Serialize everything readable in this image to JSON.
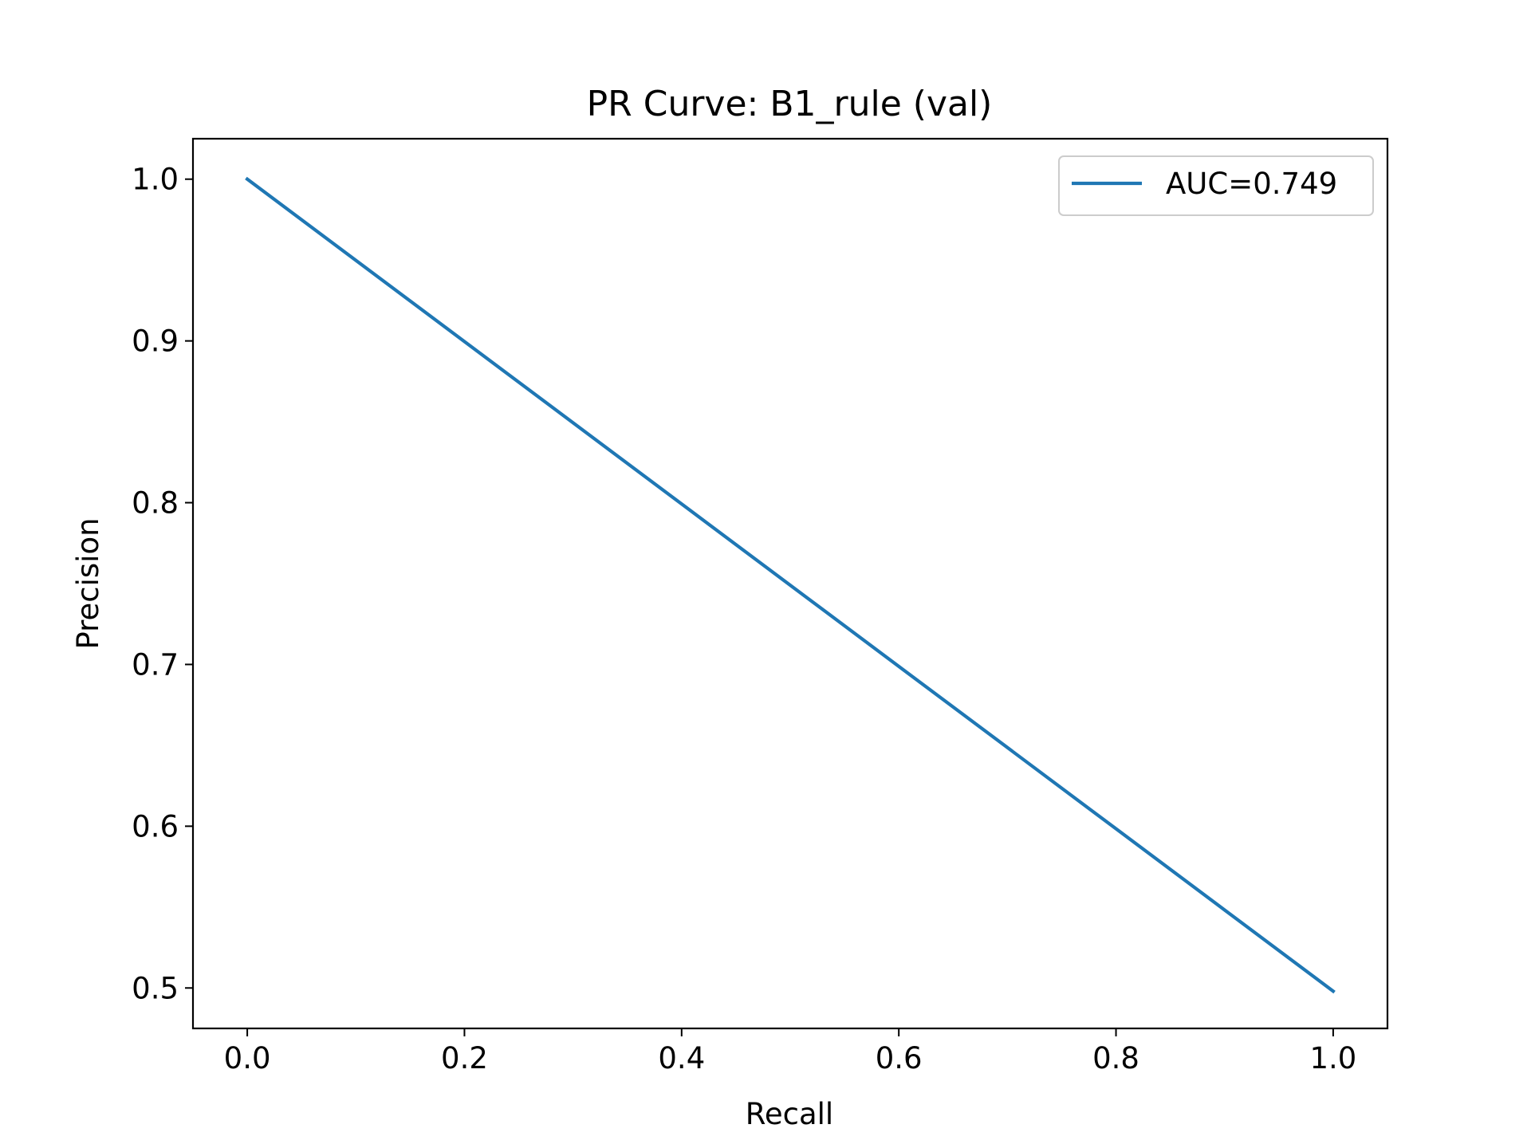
{
  "chart_data": {
    "type": "line",
    "title": "PR Curve: B1_rule (val)",
    "xlabel": "Recall",
    "ylabel": "Precision",
    "xlim": [
      -0.05,
      1.05
    ],
    "ylim": [
      0.475,
      1.025
    ],
    "xticks": [
      0.0,
      0.2,
      0.4,
      0.6,
      0.8,
      1.0
    ],
    "yticks": [
      0.5,
      0.6,
      0.7,
      0.8,
      0.9,
      1.0
    ],
    "xtick_labels": [
      "0.0",
      "0.2",
      "0.4",
      "0.6",
      "0.8",
      "1.0"
    ],
    "ytick_labels": [
      "0.5",
      "0.6",
      "0.7",
      "0.8",
      "0.9",
      "1.0"
    ],
    "grid": false,
    "legend_position": "upper right",
    "series": [
      {
        "name": "AUC=0.749",
        "color": "#1f77b4",
        "x": [
          0.0,
          1.0
        ],
        "y": [
          1.0,
          0.498
        ]
      }
    ]
  }
}
